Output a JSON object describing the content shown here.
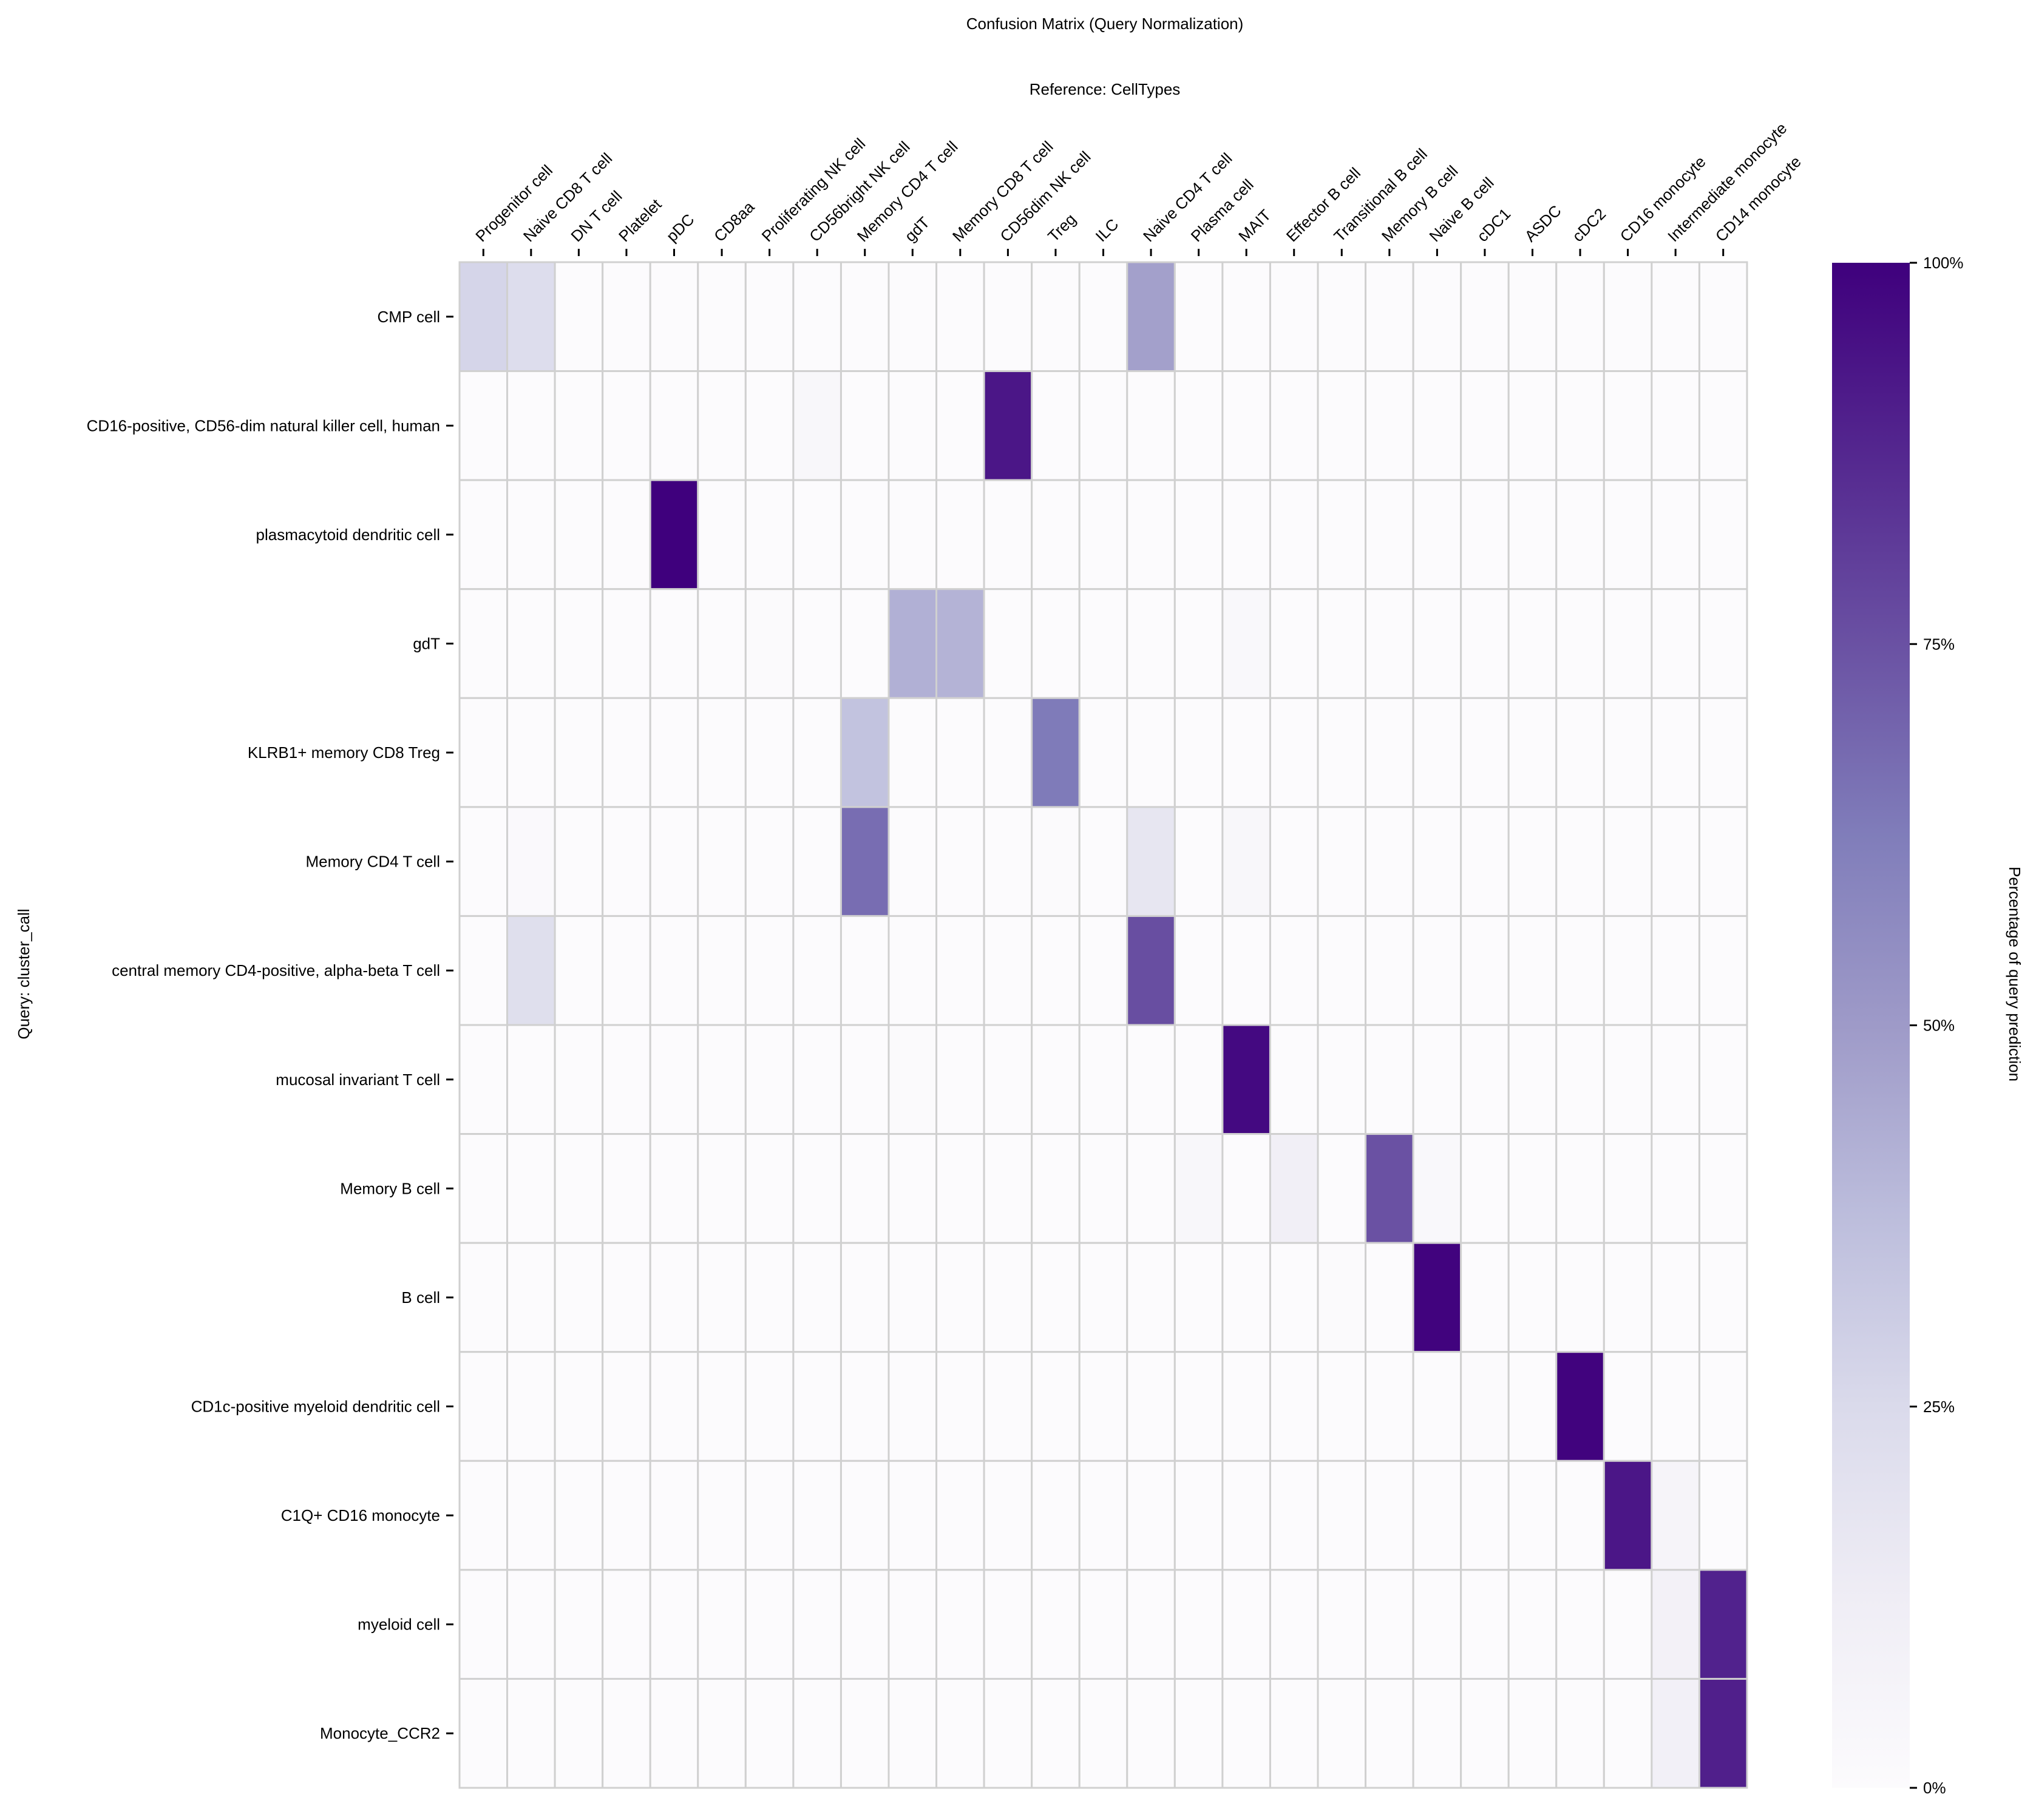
{
  "chart_data": {
    "type": "heatmap",
    "title": "Confusion Matrix (Query Normalization)",
    "xlabel": "Reference: CellTypes",
    "ylabel": "Query: cluster_call",
    "colorbar_label": "Percentage of query prediction",
    "colorbar_ticks": [
      "0%",
      "25%",
      "50%",
      "75%",
      "100%"
    ],
    "colorbar_tick_values": [
      0,
      25,
      50,
      75,
      100
    ],
    "vmin": 0,
    "vmax": 100,
    "colormap": "Purples",
    "colormap_stops": [
      "#fcfbfd",
      "#efedf5",
      "#dadaeb",
      "#bcbddc",
      "#9e9ac8",
      "#807dba",
      "#6a51a3",
      "#54278f",
      "#3f007d"
    ],
    "grid_color": "#d0d0d0",
    "columns": [
      "Progenitor cell",
      "Naive CD8 T cell",
      "DN T cell",
      "Platelet",
      "pDC",
      "CD8aa",
      "Proliferating NK cell",
      "CD56bright NK cell",
      "Memory CD4 T cell",
      "gdT",
      "Memory CD8 T cell",
      "CD56dim NK cell",
      "Treg",
      "ILC",
      "Naive CD4 T cell",
      "Plasma cell",
      "MAIT",
      "Effector B cell",
      "Transitional B cell",
      "Memory B cell",
      "Naive B cell",
      "cDC1",
      "ASDC",
      "cDC2",
      "CD16 monocyte",
      "Intermediate monocyte",
      "CD14 monocyte"
    ],
    "rows": [
      "CMP cell",
      "CD16-positive, CD56-dim natural killer cell, human",
      "plasmacytoid dendritic cell",
      "gdT",
      "KLRB1+ memory CD8 Treg",
      "Memory CD4 T cell",
      "central memory CD4-positive, alpha-beta T cell",
      "mucosal invariant T cell",
      "Memory B cell",
      "B cell",
      "CD1c-positive myeloid dendritic cell",
      "C1Q+ CD16 monocyte",
      "myeloid cell",
      "Monocyte_CCR2"
    ],
    "values": [
      [
        27,
        23,
        0,
        0,
        0,
        0,
        0,
        0,
        0,
        0,
        0,
        0,
        0,
        0,
        48,
        0,
        0,
        0,
        0,
        0,
        0,
        0,
        0,
        0,
        0,
        0,
        0
      ],
      [
        0,
        0,
        0,
        0,
        0,
        0,
        0,
        4,
        0,
        0,
        0,
        93,
        0,
        0,
        0,
        0,
        0,
        0,
        0,
        0,
        0,
        0,
        0,
        0,
        0,
        0,
        0
      ],
      [
        0,
        0,
        0,
        0,
        100,
        0,
        0,
        0,
        0,
        0,
        0,
        0,
        0,
        0,
        0,
        0,
        0,
        0,
        0,
        0,
        0,
        0,
        0,
        0,
        0,
        0,
        0
      ],
      [
        0,
        0,
        0,
        0,
        0,
        0,
        1,
        0,
        0,
        42,
        41,
        0,
        0,
        0,
        0,
        0,
        3,
        0,
        0,
        0,
        0,
        0,
        0,
        0,
        0,
        0,
        0
      ],
      [
        0,
        0,
        0,
        0,
        0,
        0,
        0,
        0,
        35,
        0,
        0,
        0,
        63,
        0,
        0,
        0,
        0,
        0,
        0,
        0,
        0,
        0,
        0,
        0,
        0,
        0,
        0
      ],
      [
        0,
        2,
        0,
        0,
        0,
        0,
        0,
        0,
        67,
        0,
        0,
        0,
        1,
        0,
        17,
        0,
        4,
        0,
        0,
        0,
        0,
        0,
        0,
        0,
        0,
        0,
        0
      ],
      [
        0,
        22,
        0,
        0,
        0,
        0,
        0,
        0,
        0,
        0,
        0,
        0,
        0,
        0,
        76,
        0,
        0,
        0,
        0,
        0,
        0,
        0,
        0,
        0,
        0,
        0,
        0
      ],
      [
        0,
        0,
        0,
        0,
        0,
        0,
        0,
        0,
        0,
        1,
        0,
        0,
        0,
        0,
        0,
        0,
        97,
        0,
        0,
        0,
        0,
        0,
        0,
        0,
        0,
        0,
        0
      ],
      [
        0,
        0,
        0,
        0,
        0,
        0,
        0,
        0,
        0,
        0,
        0,
        0,
        0,
        0,
        0,
        4,
        0,
        11,
        0,
        75,
        3,
        0,
        0,
        0,
        0,
        0,
        0
      ],
      [
        0,
        0,
        0,
        0,
        0,
        0,
        0,
        0,
        0,
        0,
        0,
        0,
        0,
        0,
        0,
        0,
        0,
        0,
        1,
        0,
        99,
        0,
        0,
        0,
        0,
        0,
        0
      ],
      [
        0,
        0,
        0,
        0,
        0,
        0,
        0,
        0,
        0,
        0,
        0,
        0,
        0,
        0,
        0,
        0,
        0,
        0,
        0,
        0,
        0,
        1,
        0,
        99,
        0,
        0,
        0
      ],
      [
        0,
        0,
        0,
        0,
        0,
        0,
        0,
        0,
        0,
        0,
        0,
        0,
        0,
        0,
        0,
        0,
        0,
        0,
        0,
        0,
        0,
        0,
        0,
        0,
        93,
        6,
        0
      ],
      [
        0,
        0,
        0,
        0,
        0,
        0,
        0,
        0,
        0,
        0,
        0,
        0,
        0,
        0,
        0,
        0,
        0,
        0,
        0,
        0,
        0,
        0,
        0,
        0,
        0,
        9,
        89
      ],
      [
        0,
        0,
        0,
        0,
        0,
        0,
        0,
        0,
        0,
        0,
        0,
        0,
        0,
        0,
        0,
        0,
        0,
        0,
        0,
        0,
        0,
        0,
        0,
        0,
        0,
        10,
        90
      ]
    ]
  }
}
